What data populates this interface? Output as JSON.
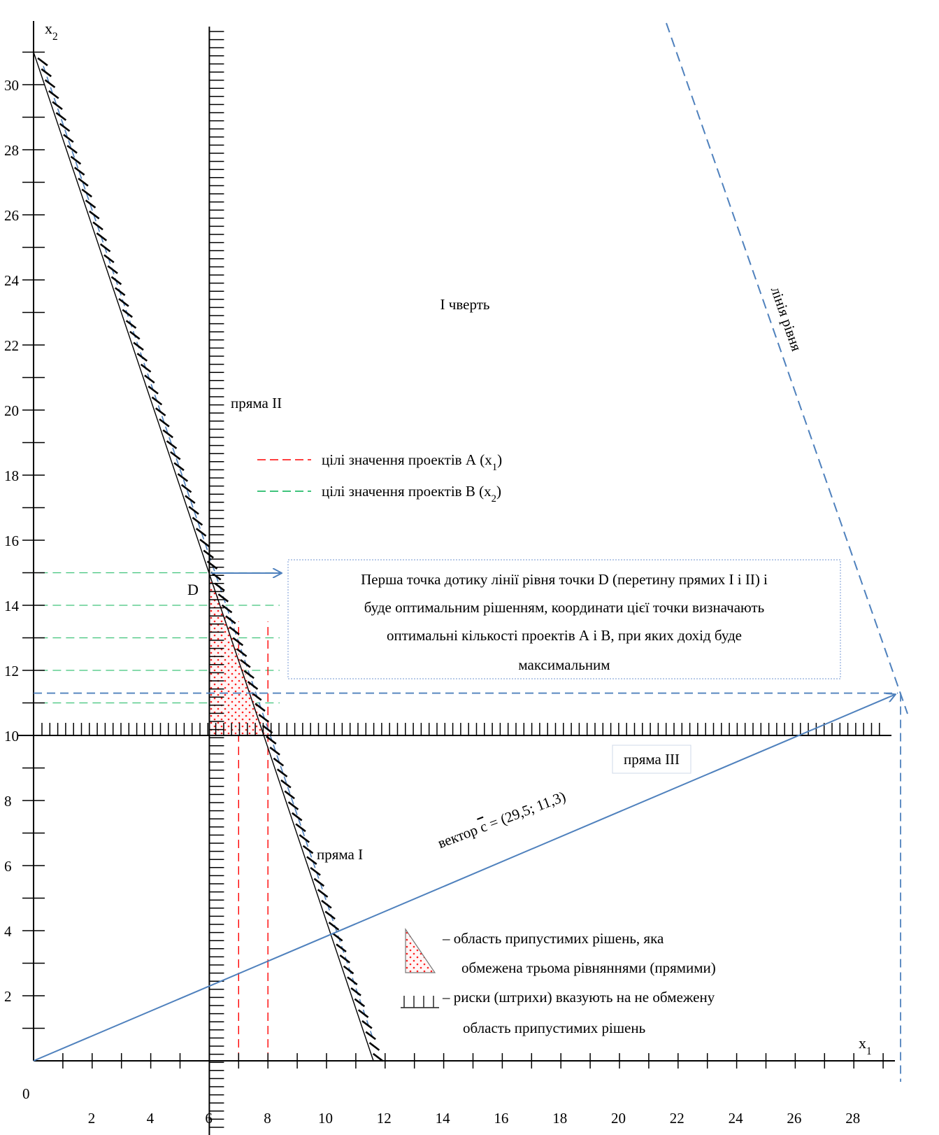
{
  "chart_data": {
    "type": "line",
    "xlabel": "x",
    "xlabel_sub": "1",
    "ylabel": "x",
    "ylabel_sub": "2",
    "xlim": [
      0,
      29.5
    ],
    "ylim": [
      0,
      32
    ],
    "origin_label": "0",
    "x_ticks": [
      2,
      4,
      6,
      8,
      10,
      12,
      14,
      16,
      18,
      20,
      22,
      24,
      26,
      28
    ],
    "y_ticks": [
      2,
      4,
      6,
      8,
      10,
      12,
      14,
      16,
      18,
      20,
      22,
      24,
      26,
      28,
      30
    ],
    "lines": [
      {
        "name": "прямая I",
        "label": "пряма I",
        "points": [
          [
            0,
            31
          ],
          [
            11.6,
            0
          ]
        ],
        "color": "#000000",
        "style": "solid",
        "hatch": "right"
      },
      {
        "name": "прямая II",
        "label": "пряма II",
        "x": 6,
        "y_range": [
          0,
          32
        ],
        "color": "#000000",
        "style": "solid",
        "hatch": "right"
      },
      {
        "name": "прямая III",
        "label": "пряма III",
        "y": 10,
        "x_range": [
          0,
          29.5
        ],
        "color": "#000000",
        "style": "solid",
        "hatch": "up"
      }
    ],
    "level_line": {
      "label": "лінія рівня",
      "points": [
        [
          21.6,
          32
        ],
        [
          29.5,
          10
        ]
      ],
      "color": "#4f81bd",
      "style": "dashed"
    },
    "vector": {
      "label_prefix": "вектор",
      "label_symbol": "c",
      "label_value": "= (29,5; 11,3)",
      "from": [
        0,
        0
      ],
      "to": [
        29.5,
        11.3
      ],
      "color": "#4f81bd"
    },
    "projections": {
      "x": 29.5,
      "y": 11.3,
      "color": "#4f81bd"
    },
    "red_dashed_x": [
      7,
      8
    ],
    "green_dashed_y": [
      11,
      12,
      13,
      14,
      15
    ],
    "feasible_region": {
      "points": [
        [
          6,
          10
        ],
        [
          8,
          10
        ],
        [
          6,
          15
        ]
      ],
      "fill": "#ff4444"
    },
    "point_D": {
      "label": "D",
      "x": 6,
      "y": 15
    },
    "quadrant_label": "І чверть",
    "legend": [
      {
        "label": "цілі значення проектів А (x",
        "sub": "1",
        "suffix": ")",
        "color": "#ff0000"
      },
      {
        "label": "цілі значення проектів В (x",
        "sub": "2",
        "suffix": ")",
        "color": "#00b050"
      }
    ],
    "callout": {
      "lines": [
        "Перша точка дотику лінії рівня точки D (перетину прямих I і II) і",
        "буде оптимальним рішенням, координати цієї точки визначають",
        "оптимальні кількості проектів А і В, при яких дохід буде",
        "максимальним"
      ]
    },
    "region_note": {
      "lines": [
        "– область припустимих рішень, яка",
        "обмежена трьома рівняннями (прямими)"
      ]
    },
    "hatch_note": {
      "lines": [
        "–  риски (штрихи) вказують на не обмежену",
        "область припустимих рішень"
      ]
    }
  }
}
